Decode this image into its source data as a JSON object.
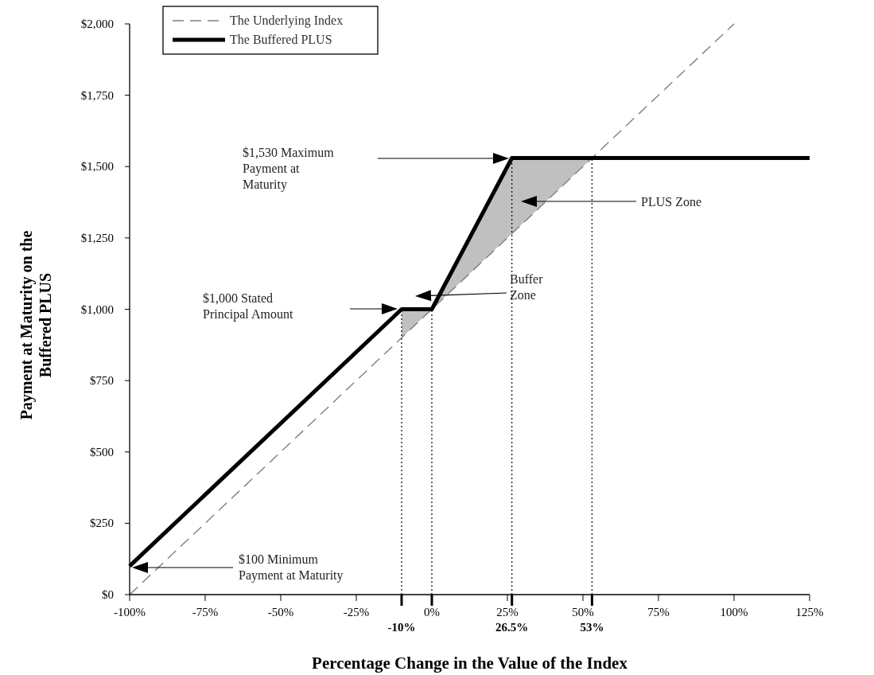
{
  "chart_data": {
    "type": "line",
    "xlabel": "Percentage Change in the Value of the Index",
    "ylabel": "Payment at Maturity on the Buffered PLUS",
    "xlim": [
      -100,
      125
    ],
    "xticks": [
      {
        "value": -100,
        "label": "-100%"
      },
      {
        "value": -75,
        "label": "-75%"
      },
      {
        "value": -50,
        "label": "-50%"
      },
      {
        "value": -25,
        "label": "-25%"
      },
      {
        "value": 0,
        "label": "0%"
      },
      {
        "value": 25,
        "label": "25%"
      },
      {
        "value": 50,
        "label": "50%"
      },
      {
        "value": 75,
        "label": "75%"
      },
      {
        "value": 100,
        "label": "100%"
      },
      {
        "value": 125,
        "label": "125%"
      }
    ],
    "ylim": [
      0,
      2000
    ],
    "yticks": [
      {
        "value": 0,
        "label": "$0"
      },
      {
        "value": 250,
        "label": "$250"
      },
      {
        "value": 500,
        "label": "$500"
      },
      {
        "value": 750,
        "label": "$750"
      },
      {
        "value": 1000,
        "label": "$1,000"
      },
      {
        "value": 1250,
        "label": "$1,250"
      },
      {
        "value": 1500,
        "label": "$1,500"
      },
      {
        "value": 1750,
        "label": "$1,750"
      },
      {
        "value": 2000,
        "label": "$2,000"
      }
    ],
    "series": [
      {
        "name": "The Underlying Index",
        "color": "#808080",
        "line_style": "dashed",
        "x": [
          -100,
          100
        ],
        "values": [
          0,
          2000
        ]
      },
      {
        "name": "The Buffered PLUS",
        "color": "#000000",
        "line_style": "solid",
        "x": [
          -100,
          -10,
          0,
          26.5,
          125
        ],
        "values": [
          100,
          1000,
          1000,
          1530,
          1530
        ]
      },
      {
        "type": "area",
        "color": "#c0c0c0",
        "x": [
          -10,
          0,
          26.5,
          53
        ],
        "values": [
          1000,
          1000,
          1530,
          1530
        ]
      }
    ],
    "ref_lines": [
      {
        "axis": "x",
        "value": -10,
        "label": "-10%",
        "line_style": "dotted",
        "color": "#000000"
      },
      {
        "axis": "x",
        "value": 0,
        "line_style": "dotted",
        "color": "#000000"
      },
      {
        "axis": "x",
        "value": 26.5,
        "label": "26.5%",
        "line_style": "dotted",
        "color": "#000000"
      },
      {
        "axis": "x",
        "value": 53,
        "label": "53%",
        "line_style": "dotted",
        "color": "#000000"
      }
    ],
    "annotations": [
      "Buffer Zone",
      "PLUS Zone",
      "$1,530 Maximum Payment at Maturity",
      "$1,000 Stated Principal Amount",
      "$100 Minimum Payment at Maturity"
    ],
    "legend": "top left",
    "grid": false
  }
}
